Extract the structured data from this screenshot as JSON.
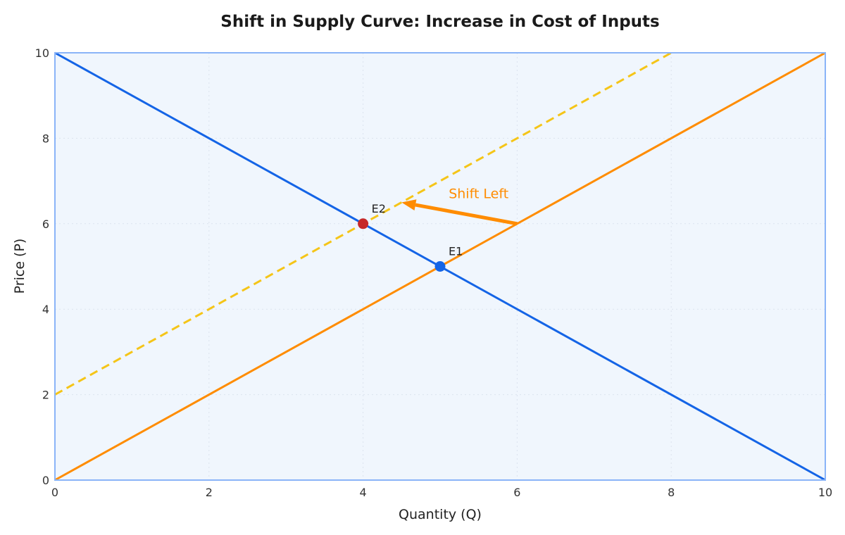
{
  "chart_data": {
    "type": "line",
    "title": "Shift in Supply Curve: Increase in Cost of Inputs",
    "xlabel": "Quantity (Q)",
    "ylabel": "Price (P)",
    "xlim": [
      0,
      10
    ],
    "ylim": [
      0,
      10
    ],
    "xticks": [
      "0",
      "2",
      "4",
      "6",
      "8",
      "10"
    ],
    "yticks": [
      "0",
      "2",
      "4",
      "6",
      "8",
      "10"
    ],
    "grid": true,
    "background": "#f0f6fd",
    "frame_color": "#8ab4f8",
    "series": [
      {
        "id": "demand",
        "color": "#1464e6",
        "style": "solid",
        "x": [
          0,
          10
        ],
        "y": [
          10,
          0
        ]
      },
      {
        "id": "supply1",
        "color": "#ff8c00",
        "style": "solid",
        "x": [
          0,
          10
        ],
        "y": [
          0,
          10
        ]
      },
      {
        "id": "supply2",
        "color": "#f5c518",
        "style": "dashed",
        "x": [
          0,
          8
        ],
        "y": [
          2,
          10
        ]
      }
    ],
    "points": [
      {
        "label": "E1",
        "x": 5,
        "y": 5,
        "color": "#1464e6"
      },
      {
        "label": "E2",
        "x": 4,
        "y": 6,
        "color": "#c62828"
      }
    ],
    "annotations": [
      {
        "text": "Shift Left",
        "color": "#ff8c00",
        "arrow_from": [
          6,
          6
        ],
        "arrow_to": [
          4.5,
          6.5
        ],
        "text_at": [
          5.5,
          6.6
        ]
      }
    ]
  }
}
